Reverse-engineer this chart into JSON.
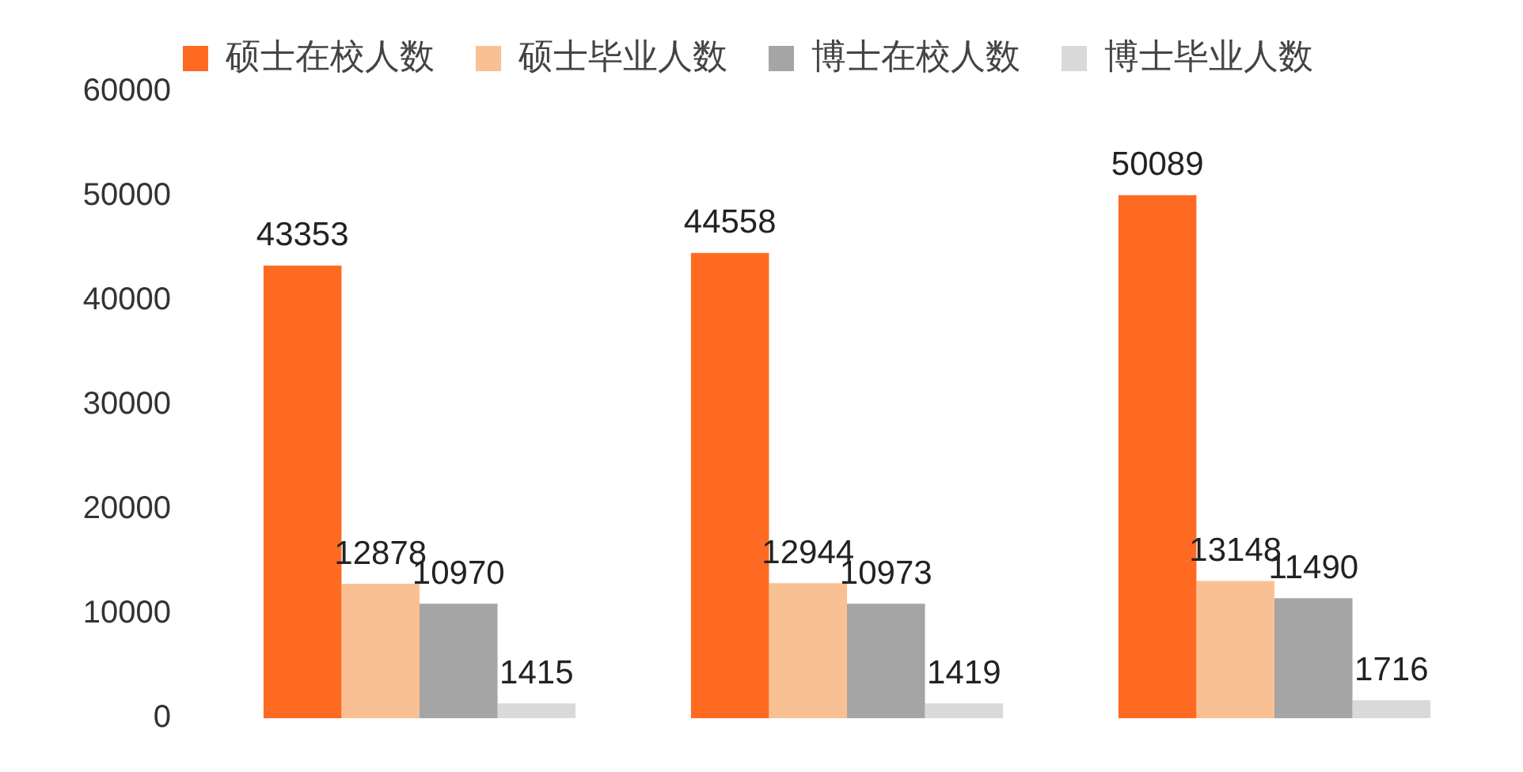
{
  "chart_data": {
    "type": "bar",
    "categories": [
      null,
      null,
      null
    ],
    "series": [
      {
        "name": "硕士在校人数",
        "color": "#ff6a22",
        "values": [
          43353,
          44558,
          50089
        ]
      },
      {
        "name": "硕士毕业人数",
        "color": "#f9c193",
        "values": [
          12878,
          12944,
          13148
        ]
      },
      {
        "name": "博士在校人数",
        "color": "#a5a5a5",
        "values": [
          10970,
          10973,
          11490
        ]
      },
      {
        "name": "博士毕业人数",
        "color": "#d9d9d9",
        "values": [
          1415,
          1419,
          1716
        ]
      }
    ],
    "ylim": [
      0,
      60000
    ],
    "yticks": [
      0,
      10000,
      20000,
      30000,
      40000,
      50000,
      60000
    ],
    "legend": "top",
    "tick_labels": "y",
    "data_labels": true
  }
}
